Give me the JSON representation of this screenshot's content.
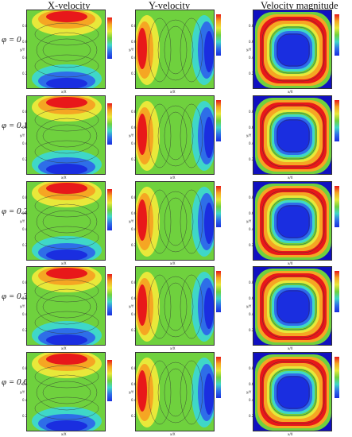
{
  "titles": {
    "x_velocity": "X-velocity",
    "y_velocity": "Y-velocity",
    "velocity_magnitude": "Velocity  magnitude"
  },
  "rows": [
    {
      "phi": "φ = 0"
    },
    {
      "phi": "φ = 0.1"
    },
    {
      "phi": "φ = 0.2"
    },
    {
      "phi": "φ = 0.3"
    },
    {
      "phi": "φ = 0.6"
    }
  ],
  "axis": {
    "xlabel": "x/X",
    "ylabel": "y/Y",
    "ticks": [
      "0.2",
      "0.4",
      "0.6",
      "0.8"
    ]
  },
  "colors": {
    "red": "#e8181a",
    "orange": "#f5a623",
    "yellow": "#e8e83a",
    "green": "#6fd13e",
    "cyan": "#3fd7c8",
    "blue": "#1a2ee0",
    "deep_blue": "#1010c0"
  }
}
